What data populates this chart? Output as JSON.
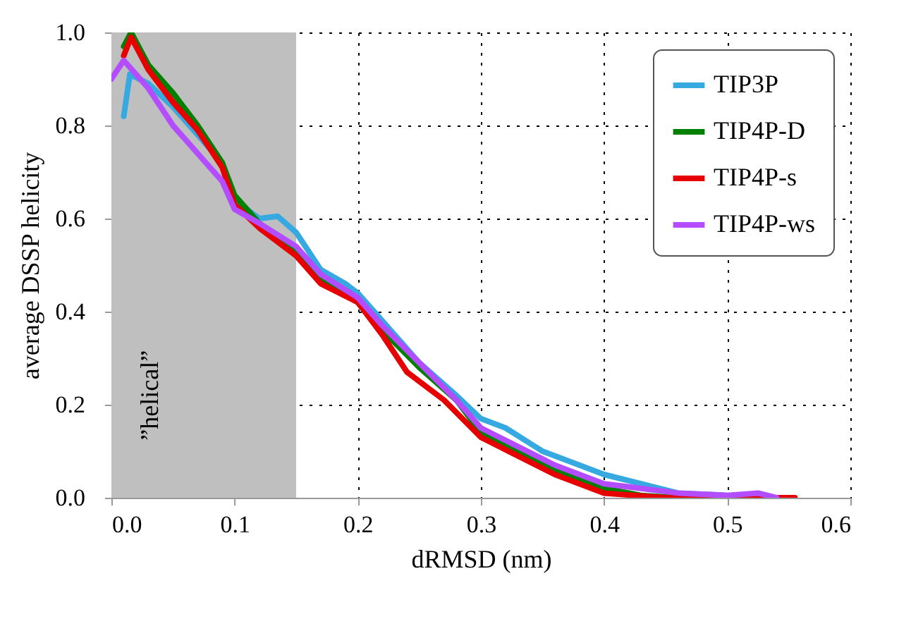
{
  "chart_data": {
    "type": "line",
    "xlabel": "dRMSD (nm)",
    "ylabel": "average DSSP helicity",
    "xlim": [
      0,
      0.6
    ],
    "ylim": [
      0,
      1
    ],
    "xticks": [
      {
        "value": 0,
        "label": "0.0"
      },
      0.1,
      0.2,
      0.3,
      0.4,
      0.5,
      0.6
    ],
    "yticks": [
      {
        "value": 0,
        "label": "0.0"
      },
      0.2,
      0.4,
      0.6,
      0.8,
      {
        "value": 1,
        "label": "1.0"
      }
    ],
    "grid": true,
    "legend": "top right",
    "line_style": "solid",
    "marker": "none",
    "bands": [
      {
        "axis": "x",
        "from": 0,
        "to": 0.15,
        "label": "”helical”",
        "color": "#bfbfbf"
      }
    ],
    "series": [
      {
        "name": "TIP3P",
        "color": "#35a9e0",
        "x": [
          0.01,
          0.015,
          0.03,
          0.05,
          0.07,
          0.09,
          0.1,
          0.12,
          0.135,
          0.15,
          0.17,
          0.19,
          0.2,
          0.22,
          0.25,
          0.28,
          0.3,
          0.32,
          0.35,
          0.38,
          0.4,
          0.43,
          0.46,
          0.5,
          0.53
        ],
        "values": [
          0.82,
          0.91,
          0.89,
          0.84,
          0.78,
          0.72,
          0.64,
          0.6,
          0.605,
          0.57,
          0.49,
          0.46,
          0.44,
          0.38,
          0.29,
          0.22,
          0.17,
          0.15,
          0.1,
          0.07,
          0.05,
          0.03,
          0.01,
          0.005,
          0.0
        ]
      },
      {
        "name": "TIP4P-D",
        "color": "#008000",
        "x": [
          0.01,
          0.016,
          0.03,
          0.05,
          0.07,
          0.09,
          0.1,
          0.12,
          0.15,
          0.17,
          0.2,
          0.22,
          0.25,
          0.28,
          0.3,
          0.33,
          0.36,
          0.4,
          0.43,
          0.46
        ],
        "values": [
          0.97,
          1.0,
          0.93,
          0.87,
          0.8,
          0.72,
          0.65,
          0.59,
          0.53,
          0.47,
          0.42,
          0.36,
          0.28,
          0.21,
          0.14,
          0.1,
          0.06,
          0.02,
          0.005,
          0.0
        ]
      },
      {
        "name": "TIP4P-s",
        "color": "#e60000",
        "x": [
          0.01,
          0.016,
          0.03,
          0.05,
          0.07,
          0.09,
          0.1,
          0.12,
          0.15,
          0.17,
          0.2,
          0.22,
          0.24,
          0.27,
          0.3,
          0.33,
          0.36,
          0.4,
          0.45,
          0.5,
          0.555
        ],
        "values": [
          0.95,
          0.99,
          0.92,
          0.85,
          0.79,
          0.71,
          0.63,
          0.58,
          0.52,
          0.46,
          0.42,
          0.35,
          0.27,
          0.21,
          0.13,
          0.09,
          0.05,
          0.01,
          0.0,
          0.0,
          0.0
        ]
      },
      {
        "name": "TIP4P-ws",
        "color": "#b34dff",
        "x": [
          0.0,
          0.01,
          0.03,
          0.05,
          0.07,
          0.09,
          0.1,
          0.12,
          0.15,
          0.17,
          0.2,
          0.22,
          0.25,
          0.28,
          0.3,
          0.33,
          0.36,
          0.4,
          0.43,
          0.46,
          0.5,
          0.525,
          0.54
        ],
        "values": [
          0.9,
          0.94,
          0.88,
          0.8,
          0.74,
          0.68,
          0.62,
          0.59,
          0.54,
          0.48,
          0.43,
          0.37,
          0.29,
          0.21,
          0.15,
          0.11,
          0.07,
          0.03,
          0.02,
          0.01,
          0.005,
          0.01,
          0.0
        ]
      }
    ]
  }
}
